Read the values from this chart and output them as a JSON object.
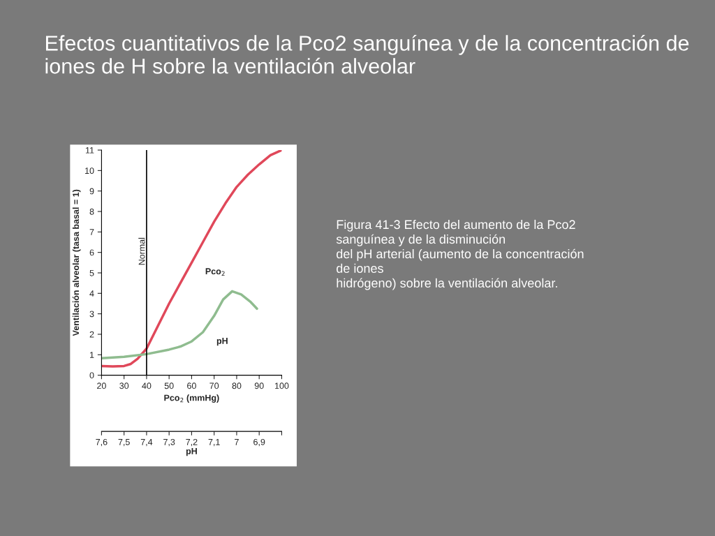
{
  "chart_data": {
    "type": "line",
    "title": "Efectos cuantitativos de la Pco2 sanguínea y de la concentración de iones de H sobre la ventilación alveolar",
    "xlabel": "Pco$_{2}$ (mmHg)",
    "ylabel": "Ventilación alveolar (tasa basal = 1)",
    "x2label": "pH",
    "series": [
      {
        "name": "Pco$_{2}$",
        "color": "#e0485a",
        "x": [
          20,
          25,
          30,
          33,
          36,
          40,
          45,
          50,
          55,
          60,
          65,
          70,
          75,
          80,
          85,
          90,
          95,
          100
        ],
        "values": [
          0.45,
          0.43,
          0.45,
          0.55,
          0.8,
          1.3,
          2.4,
          3.5,
          4.5,
          5.5,
          6.5,
          7.5,
          8.4,
          9.2,
          9.8,
          10.3,
          10.75,
          11.0
        ]
      },
      {
        "name": "pH",
        "color": "#8fbc8f",
        "x": [
          20,
          30,
          40,
          50,
          55,
          60,
          65,
          70,
          74,
          78,
          82,
          86,
          89
        ],
        "values": [
          0.83,
          0.9,
          1.03,
          1.25,
          1.4,
          1.65,
          2.1,
          2.9,
          3.7,
          4.1,
          3.95,
          3.6,
          3.25
        ]
      }
    ],
    "xlim": [
      20,
      100
    ],
    "xticks": [
      20,
      30,
      40,
      50,
      60,
      70,
      80,
      90,
      100
    ],
    "ylim": [
      0,
      11
    ],
    "yticks": [
      0,
      1,
      2,
      3,
      4,
      5,
      6,
      7,
      8,
      9,
      10,
      11
    ],
    "x2lim": [
      7.6,
      6.8
    ],
    "x2ticks": [
      {
        "value": 7.6,
        "label": "7,6"
      },
      {
        "value": 7.5,
        "label": "7,5"
      },
      {
        "value": 7.4,
        "label": "7,4"
      },
      {
        "value": 7.3,
        "label": "7,3"
      },
      {
        "value": 7.2,
        "label": "7,2"
      },
      {
        "value": 7.1,
        "label": "7,1"
      },
      {
        "value": 7.0,
        "label": "7"
      },
      {
        "value": 6.9,
        "label": "6,9"
      },
      {
        "value": 6.8,
        "label": null
      }
    ],
    "ref_lines": [
      {
        "axis": "x",
        "value": 40,
        "label": "Normal",
        "color": "#000000"
      }
    ],
    "grid": false,
    "legend": false,
    "annotations": [
      "Figura 41-3 Efecto del aumento de la Pco2\nsanguínea y de la disminución\ndel pH arterial (aumento de la concentración\nde iones\nhidrógeno) sobre la ventilación alveolar."
    ]
  }
}
